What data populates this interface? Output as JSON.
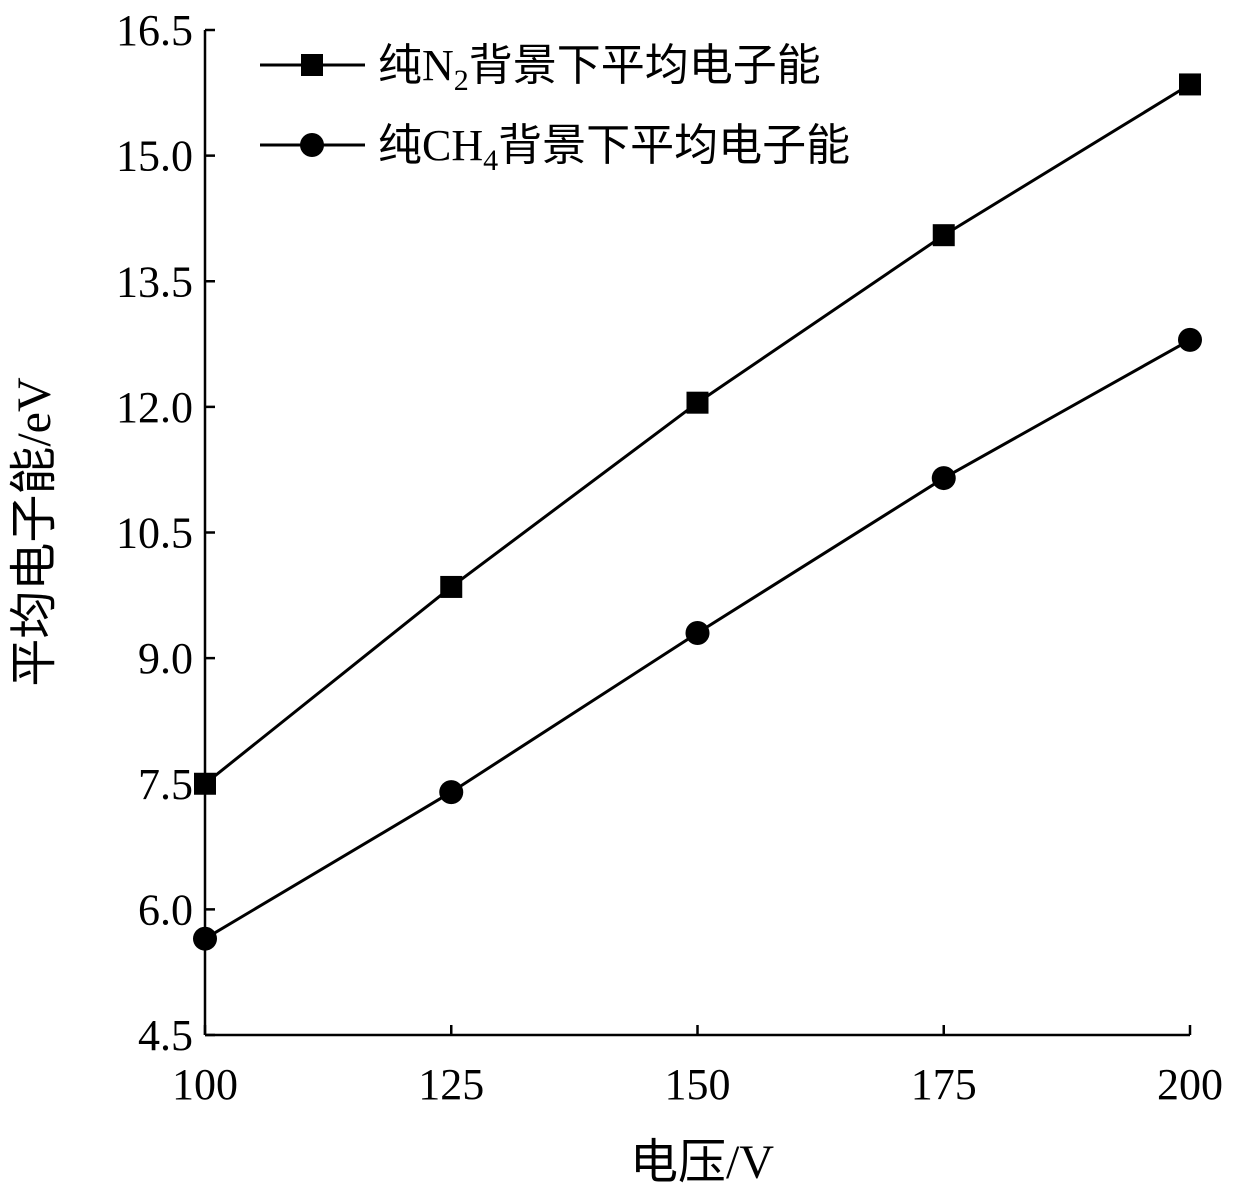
{
  "chart_data": {
    "type": "line",
    "title": "",
    "xlabel": "电压/V",
    "ylabel": "平均电子能/eV",
    "x": [
      100,
      125,
      150,
      175,
      200
    ],
    "xticks": [
      "100",
      "125",
      "150",
      "175",
      "200"
    ],
    "yticks": [
      "4.5",
      "6.0",
      "7.5",
      "9.0",
      "10.5",
      "12.0",
      "13.5",
      "15.0",
      "16.5"
    ],
    "xlim": [
      100,
      200
    ],
    "ylim": [
      4.5,
      16.5
    ],
    "grid": false,
    "legend_position": "top-left",
    "series": [
      {
        "name": "纯N2背景下平均电子能",
        "label_prefix": "纯N",
        "label_sub": "2",
        "label_suffix": "背景下平均电子能",
        "marker": "square",
        "color": "#000000",
        "values": [
          7.5,
          9.85,
          12.05,
          14.05,
          15.85
        ]
      },
      {
        "name": "纯CH4背景下平均电子能",
        "label_prefix": "纯CH",
        "label_sub": "4",
        "label_suffix": "背景下平均电子能",
        "marker": "circle",
        "color": "#000000",
        "values": [
          5.65,
          7.4,
          9.3,
          11.15,
          12.8
        ]
      }
    ]
  }
}
